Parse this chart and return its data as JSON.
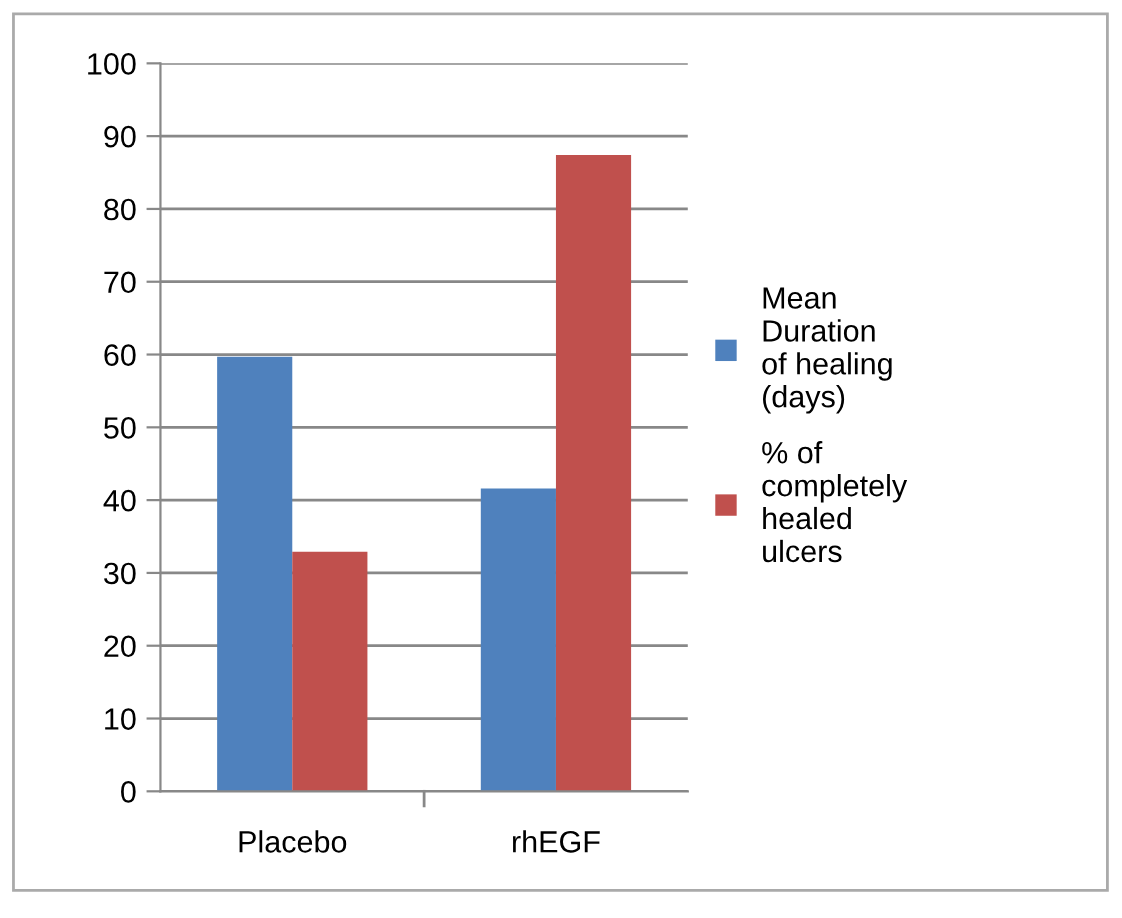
{
  "chart_data": {
    "type": "bar",
    "categories": [
      "Placebo",
      "rhEGF"
    ],
    "series": [
      {
        "name": "Mean\nDuration\nof healing\n(days)",
        "color": "#4f81bd",
        "values": [
          59.7,
          41.6
        ]
      },
      {
        "name": "% of\ncompletely\nhealed\nulcers",
        "color": "#c0504d",
        "values": [
          32.9,
          87.4
        ]
      }
    ],
    "ylim": [
      0,
      100
    ],
    "yticks": [
      0,
      10,
      20,
      30,
      40,
      50,
      60,
      70,
      80,
      90,
      100
    ],
    "grid": "y",
    "legend": "right"
  }
}
